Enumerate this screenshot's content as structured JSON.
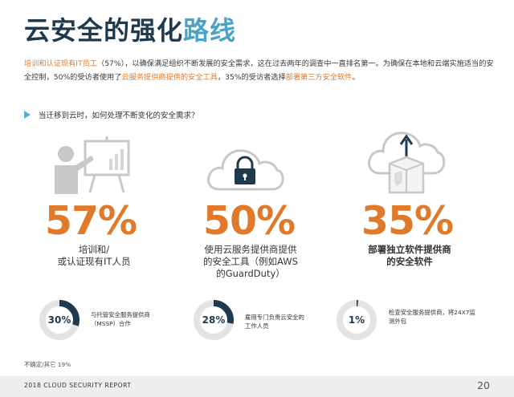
{
  "title": {
    "part1": "云安全的强化",
    "part2": "路线"
  },
  "intro": {
    "s1": "培训和认证现有IT员工",
    "s2": "（57%），以确保满足组织不断发展的安全需求，这在过去两年的调查中一直排名第一。为确保在本地和云端实施适当的安全控制，50%的受访者使用了",
    "s3": "云服务提供商提供的安全工具",
    "s4": "，35%的受访者选择",
    "s5": "部署第三方安全软件",
    "s6": "。"
  },
  "question": "当迁移到云时，如何处理不断变化的安全需求？",
  "stats": [
    {
      "value": "57%",
      "line1": "培训和/",
      "line2": "或认证现有IT人员",
      "line3": "",
      "icon": "presentation-icon"
    },
    {
      "value": "50%",
      "line1": "使用云服务提供商提供",
      "line2": "的安全工具（例如AWS",
      "line3": "的GuardDuty）",
      "icon": "cloud-lock-icon"
    },
    {
      "value": "35%",
      "line1": "部署独立软件提供商",
      "line2": "的安全软件",
      "line3": "",
      "icon": "cloud-upload-shield-icon"
    }
  ],
  "donuts": [
    {
      "label": "30%",
      "fraction": 0.3,
      "text1": "与托管安全服务提供商",
      "text2": "（MSSP）合作"
    },
    {
      "label": "28%",
      "fraction": 0.28,
      "text1": "雇用专门负责云安全的",
      "text2": "工作人员"
    },
    {
      "label": "1%",
      "fraction": 0.01,
      "text1": "检查安全服务提供商，将24X7监",
      "text2": "测外包"
    }
  ],
  "footnote": "不确定/其它 19%",
  "footer": {
    "report": "2018 CLOUD SECURITY REPORT",
    "page": "20"
  },
  "colors": {
    "orange": "#e07a2a",
    "navy": "#1f3a4d",
    "blue": "#4aa3c4",
    "grey": "#c8c8c8",
    "donut_track": "#e3e3e3"
  }
}
